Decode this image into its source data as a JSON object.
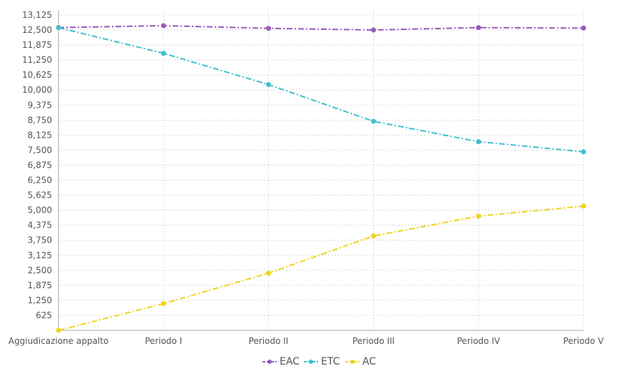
{
  "chart_data": {
    "type": "line",
    "categories": [
      "Aggiudicazione appalto",
      "Periodo I",
      "Periodo II",
      "Periodo III",
      "Periodo IV",
      "Periodo V"
    ],
    "y_ticks": [
      "625",
      "1,250",
      "1,875",
      "2,500",
      "3,125",
      "3,750",
      "4,375",
      "5,000",
      "5,625",
      "6,250",
      "6,875",
      "7,500",
      "8,125",
      "8,750",
      "9,375",
      "10,000",
      "10,625",
      "11,250",
      "11,875",
      "12,500",
      "13,125"
    ],
    "ylim": [
      0,
      13125
    ],
    "grid": true,
    "legend_position": "bottom-center",
    "series": [
      {
        "name": "EAC",
        "color": "#9b59b6",
        "values": [
          12600,
          12680,
          12570,
          12500,
          12600,
          12580
        ]
      },
      {
        "name": "ETC",
        "color": "#3fbfd0",
        "values": [
          12600,
          11530,
          10230,
          8700,
          7850,
          7430
        ]
      },
      {
        "name": "AC",
        "color": "#f0d41c",
        "values": [
          0,
          1110,
          2380,
          3930,
          4750,
          5170
        ]
      }
    ]
  }
}
